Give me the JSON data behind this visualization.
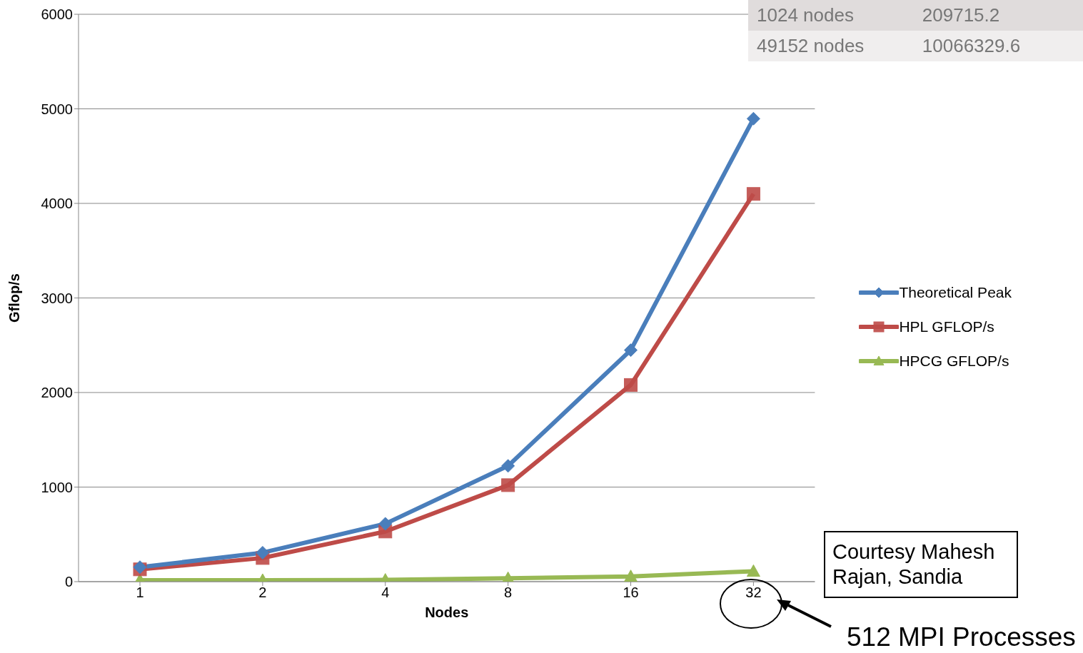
{
  "chart_data": {
    "type": "line",
    "xlabel": "Nodes",
    "ylabel": "Gflop/s",
    "categories": [
      "1",
      "2",
      "4",
      "8",
      "16",
      "32"
    ],
    "series": [
      {
        "name": "Theoretical Peak",
        "color": "#4a7ebb",
        "marker": "diamond",
        "values": [
          153,
          306,
          612,
          1224,
          2448,
          4896
        ]
      },
      {
        "name": "HPL GFLOP/s",
        "color": "#be4b48",
        "marker": "square",
        "values": [
          130,
          250,
          530,
          1020,
          2080,
          4100
        ]
      },
      {
        "name": "HPCG GFLOP/s",
        "color": "#98b954",
        "marker": "triangle",
        "values": [
          15,
          15,
          18,
          35,
          55,
          110
        ]
      }
    ],
    "ylim": [
      0,
      6000
    ],
    "yticks": [
      0,
      1000,
      2000,
      3000,
      4000,
      5000,
      6000
    ],
    "grid": "y",
    "legend": "right",
    "annotations": [
      "1024 nodes",
      "209715.2",
      "49152 nodes",
      "10066329.6",
      "Courtesy Mahesh Rajan, Sandia",
      "512 MPI Processes"
    ]
  }
}
